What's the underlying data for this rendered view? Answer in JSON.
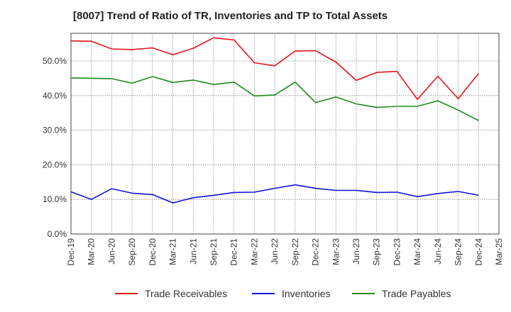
{
  "chart_data": {
    "type": "line",
    "title": "[8007]  Trend of Ratio of TR, Inventories and TP to Total Assets",
    "xlabel": "",
    "ylabel": "",
    "x_ticks": [
      "Dec-19",
      "Mar-20",
      "Jun-20",
      "Sep-20",
      "Dec-20",
      "Mar-21",
      "Jun-21",
      "Sep-21",
      "Dec-21",
      "Mar-22",
      "Jun-22",
      "Sep-22",
      "Dec-22",
      "Mar-23",
      "Jun-23",
      "Sep-23",
      "Dec-23",
      "Mar-24",
      "Jun-24",
      "Sep-24",
      "Dec-24",
      "Mar-25"
    ],
    "y_ticks": [
      "0.0%",
      "10.0%",
      "20.0%",
      "30.0%",
      "40.0%",
      "50.0%"
    ],
    "ylim": [
      0,
      58
    ],
    "grid": true,
    "legend_position": "bottom",
    "x": [
      "Dec-19",
      "Mar-20",
      "Jun-20",
      "Sep-20",
      "Dec-20",
      "Mar-21",
      "Jun-21",
      "Sep-21",
      "Dec-21",
      "Mar-22",
      "Jun-22",
      "Sep-22",
      "Dec-22",
      "Mar-23",
      "Jun-23",
      "Sep-23",
      "Dec-23",
      "Mar-24",
      "Jun-24",
      "Sep-24",
      "Dec-24"
    ],
    "series": [
      {
        "name": "Trade Receivables",
        "color": "#e8141b",
        "values": [
          55.8,
          55.7,
          53.5,
          53.3,
          53.8,
          51.8,
          53.7,
          56.7,
          56.1,
          49.5,
          48.6,
          52.9,
          53.0,
          49.7,
          44.4,
          46.7,
          47.0,
          38.9,
          45.6,
          39.1,
          46.4
        ]
      },
      {
        "name": "Inventories",
        "color": "#1414d2",
        "values": [
          12.2,
          10.0,
          13.1,
          11.8,
          11.4,
          9.0,
          10.5,
          11.2,
          12.0,
          12.1,
          13.2,
          14.2,
          13.2,
          12.6,
          12.6,
          12.0,
          12.1,
          10.8,
          11.7,
          12.3,
          11.2
        ]
      },
      {
        "name": "Trade Payables",
        "color": "#1e8a1e",
        "values": [
          45.1,
          45.0,
          44.9,
          43.6,
          45.5,
          43.8,
          44.5,
          43.2,
          43.9,
          39.9,
          40.2,
          43.9,
          38.0,
          39.6,
          37.6,
          36.6,
          36.9,
          36.9,
          38.5,
          35.8,
          32.8
        ]
      }
    ]
  }
}
